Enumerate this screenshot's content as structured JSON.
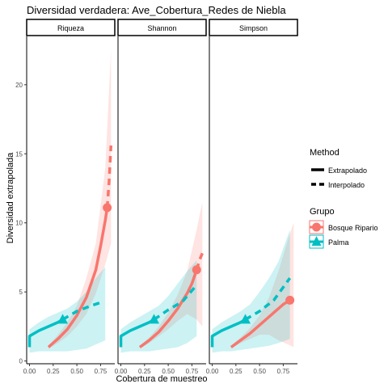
{
  "chart_data": {
    "type": "line",
    "title": "Diversidad verdadera: Ave_Cobertura_Redes de Niebla",
    "xlabel": "Cobertura de muestreo",
    "ylabel": "Diversidad extrapolada",
    "xlim": [
      -0.03,
      0.9
    ],
    "ylim": [
      -0.2,
      23.5
    ],
    "x_ticks": [
      0.0,
      0.25,
      0.5,
      0.75
    ],
    "x_tick_labels": [
      "0.00",
      "0.25",
      "0.50",
      "0.75"
    ],
    "y_ticks": [
      0,
      5,
      10,
      15,
      20
    ],
    "y_tick_labels": [
      "0",
      "5",
      "10",
      "15",
      "20"
    ],
    "grid": false,
    "legend_position": "right",
    "legend": {
      "method_title": "Method",
      "method_items": [
        {
          "label": "Extrapolado",
          "dash": "solid"
        },
        {
          "label": "Interpolado",
          "dash": "dashed"
        }
      ],
      "group_title": "Grupo",
      "group_items": [
        {
          "label": "Bosque Ripario",
          "color": "#F8766D",
          "shape": "circle"
        },
        {
          "label": "Palma",
          "color": "#00BFC4",
          "shape": "triangle"
        }
      ]
    },
    "panels": [
      {
        "strip": "Riqueza",
        "series": [
          {
            "group": "Bosque Ripario",
            "color": "#F8766D",
            "solid": [
              [
                0.2,
                1.0
              ],
              [
                0.3,
                1.6
              ],
              [
                0.4,
                2.3
              ],
              [
                0.5,
                3.3
              ],
              [
                0.6,
                4.6
              ],
              [
                0.7,
                6.6
              ],
              [
                0.75,
                8.3
              ],
              [
                0.8,
                10.2
              ],
              [
                0.82,
                11.1
              ]
            ],
            "dashed": [
              [
                0.82,
                11.1
              ],
              [
                0.84,
                13.0
              ],
              [
                0.86,
                15.6
              ]
            ],
            "point": [
              0.82,
              11.1
            ],
            "band_lower": [
              [
                0.2,
                0.9
              ],
              [
                0.3,
                1.3
              ],
              [
                0.4,
                1.8
              ],
              [
                0.5,
                2.5
              ],
              [
                0.6,
                3.4
              ],
              [
                0.7,
                4.9
              ],
              [
                0.8,
                7.0
              ],
              [
                0.86,
                8.5
              ]
            ],
            "band_upper": [
              [
                0.2,
                1.1
              ],
              [
                0.3,
                1.9
              ],
              [
                0.4,
                2.8
              ],
              [
                0.5,
                4.0
              ],
              [
                0.6,
                6.0
              ],
              [
                0.7,
                8.5
              ],
              [
                0.8,
                14.0
              ],
              [
                0.86,
                22.5
              ]
            ]
          },
          {
            "group": "Palma",
            "color": "#00BFC4",
            "solid": [
              [
                0.0,
                1.0
              ],
              [
                0.0,
                1.8
              ],
              [
                0.05,
                2.0
              ],
              [
                0.1,
                2.2
              ],
              [
                0.2,
                2.5
              ],
              [
                0.3,
                2.8
              ],
              [
                0.35,
                3.0
              ]
            ],
            "dashed": [
              [
                0.35,
                3.0
              ],
              [
                0.5,
                3.6
              ],
              [
                0.65,
                4.0
              ],
              [
                0.78,
                4.3
              ]
            ],
            "point": [
              0.35,
              3.0
            ],
            "band_lower": [
              [
                0.0,
                0.6
              ],
              [
                0.1,
                0.7
              ],
              [
                0.2,
                0.7
              ],
              [
                0.3,
                0.7
              ],
              [
                0.4,
                0.7
              ],
              [
                0.5,
                0.8
              ],
              [
                0.6,
                0.9
              ],
              [
                0.7,
                1.2
              ],
              [
                0.8,
                1.5
              ]
            ],
            "band_upper": [
              [
                0.0,
                2.3
              ],
              [
                0.1,
                2.8
              ],
              [
                0.2,
                3.2
              ],
              [
                0.3,
                3.5
              ],
              [
                0.4,
                3.8
              ],
              [
                0.5,
                4.3
              ],
              [
                0.6,
                5.0
              ],
              [
                0.7,
                6.0
              ],
              [
                0.8,
                6.8
              ]
            ]
          }
        ]
      },
      {
        "strip": "Shannon",
        "series": [
          {
            "group": "Bosque Ripario",
            "color": "#F8766D",
            "solid": [
              [
                0.2,
                1.0
              ],
              [
                0.3,
                1.5
              ],
              [
                0.4,
                2.1
              ],
              [
                0.5,
                2.9
              ],
              [
                0.6,
                3.8
              ],
              [
                0.7,
                4.9
              ],
              [
                0.75,
                5.6
              ],
              [
                0.8,
                6.6
              ]
            ],
            "dashed": [
              [
                0.8,
                6.6
              ],
              [
                0.83,
                7.3
              ],
              [
                0.86,
                7.8
              ]
            ],
            "point": [
              0.8,
              6.6
            ],
            "band_lower": [
              [
                0.2,
                0.9
              ],
              [
                0.3,
                1.3
              ],
              [
                0.4,
                1.8
              ],
              [
                0.5,
                2.3
              ],
              [
                0.6,
                2.9
              ],
              [
                0.7,
                3.4
              ],
              [
                0.8,
                3.0
              ],
              [
                0.86,
                2.5
              ]
            ],
            "band_upper": [
              [
                0.2,
                1.1
              ],
              [
                0.3,
                1.7
              ],
              [
                0.4,
                2.5
              ],
              [
                0.5,
                3.5
              ],
              [
                0.6,
                4.8
              ],
              [
                0.7,
                6.5
              ],
              [
                0.8,
                9.5
              ],
              [
                0.86,
                11.5
              ]
            ]
          },
          {
            "group": "Palma",
            "color": "#00BFC4",
            "solid": [
              [
                0.0,
                1.0
              ],
              [
                0.0,
                1.8
              ],
              [
                0.05,
                2.0
              ],
              [
                0.1,
                2.2
              ],
              [
                0.2,
                2.5
              ],
              [
                0.3,
                2.8
              ],
              [
                0.35,
                3.0
              ]
            ],
            "dashed": [
              [
                0.35,
                3.0
              ],
              [
                0.5,
                3.7
              ],
              [
                0.65,
                4.3
              ],
              [
                0.8,
                5.5
              ]
            ],
            "point": [
              0.35,
              3.0
            ],
            "band_lower": [
              [
                0.0,
                0.6
              ],
              [
                0.1,
                0.7
              ],
              [
                0.2,
                0.7
              ],
              [
                0.3,
                0.7
              ],
              [
                0.4,
                0.8
              ],
              [
                0.5,
                0.9
              ],
              [
                0.6,
                1.0
              ],
              [
                0.7,
                1.3
              ],
              [
                0.8,
                1.8
              ]
            ],
            "band_upper": [
              [
                0.0,
                2.3
              ],
              [
                0.1,
                2.8
              ],
              [
                0.2,
                3.2
              ],
              [
                0.3,
                3.6
              ],
              [
                0.4,
                4.0
              ],
              [
                0.5,
                4.7
              ],
              [
                0.6,
                5.6
              ],
              [
                0.7,
                6.5
              ],
              [
                0.8,
                7.3
              ]
            ]
          }
        ]
      },
      {
        "strip": "Simpson",
        "series": [
          {
            "group": "Bosque Ripario",
            "color": "#F8766D",
            "solid": [
              [
                0.2,
                1.0
              ],
              [
                0.3,
                1.5
              ],
              [
                0.4,
                2.0
              ],
              [
                0.5,
                2.6
              ],
              [
                0.6,
                3.2
              ],
              [
                0.7,
                3.8
              ],
              [
                0.75,
                4.1
              ],
              [
                0.82,
                4.4
              ]
            ],
            "dashed": [
              [
                0.82,
                4.4
              ],
              [
                0.86,
                4.45
              ]
            ],
            "point": [
              0.82,
              4.4
            ],
            "band_lower": [
              [
                0.2,
                0.9
              ],
              [
                0.3,
                1.3
              ],
              [
                0.4,
                1.6
              ],
              [
                0.5,
                1.9
              ],
              [
                0.6,
                1.9
              ],
              [
                0.7,
                1.5
              ],
              [
                0.8,
                1.2
              ],
              [
                0.86,
                1.0
              ]
            ],
            "band_upper": [
              [
                0.2,
                1.1
              ],
              [
                0.3,
                1.7
              ],
              [
                0.4,
                2.4
              ],
              [
                0.5,
                3.3
              ],
              [
                0.6,
                4.6
              ],
              [
                0.7,
                6.5
              ],
              [
                0.8,
                8.8
              ],
              [
                0.86,
                10.0
              ]
            ]
          },
          {
            "group": "Palma",
            "color": "#00BFC4",
            "solid": [
              [
                0.0,
                1.0
              ],
              [
                0.0,
                1.8
              ],
              [
                0.05,
                2.0
              ],
              [
                0.1,
                2.2
              ],
              [
                0.2,
                2.5
              ],
              [
                0.3,
                2.8
              ],
              [
                0.35,
                3.0
              ]
            ],
            "dashed": [
              [
                0.35,
                3.0
              ],
              [
                0.5,
                3.6
              ],
              [
                0.65,
                4.4
              ],
              [
                0.82,
                6.0
              ]
            ],
            "point": [
              0.35,
              3.0
            ],
            "band_lower": [
              [
                0.0,
                0.6
              ],
              [
                0.1,
                0.7
              ],
              [
                0.2,
                0.7
              ],
              [
                0.3,
                0.8
              ],
              [
                0.4,
                0.9
              ],
              [
                0.5,
                1.0
              ],
              [
                0.6,
                1.1
              ],
              [
                0.7,
                1.3
              ],
              [
                0.82,
                1.6
              ]
            ],
            "band_upper": [
              [
                0.0,
                2.3
              ],
              [
                0.1,
                2.8
              ],
              [
                0.2,
                3.2
              ],
              [
                0.3,
                3.6
              ],
              [
                0.4,
                4.1
              ],
              [
                0.5,
                5.0
              ],
              [
                0.6,
                6.0
              ],
              [
                0.7,
                7.2
              ],
              [
                0.82,
                9.5
              ]
            ]
          }
        ]
      }
    ]
  }
}
